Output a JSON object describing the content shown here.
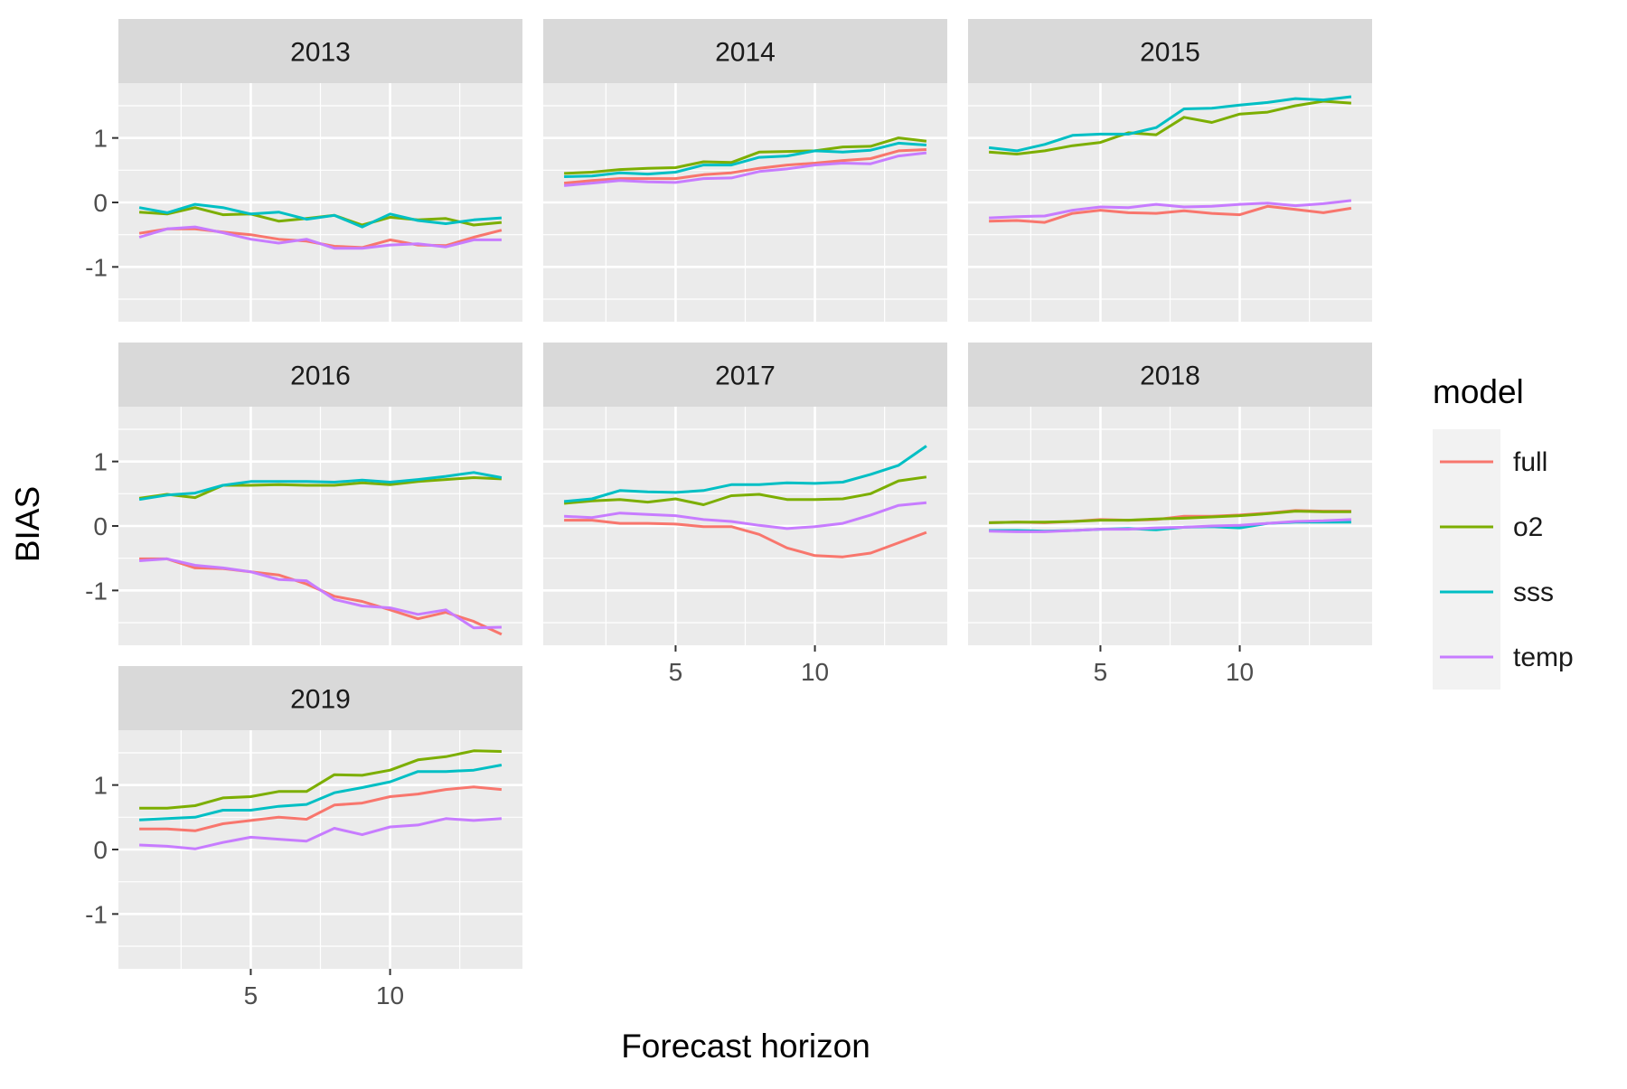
{
  "chart_data": {
    "type": "line",
    "xlabel": "Forecast horizon",
    "ylabel": "BIAS",
    "xlim": [
      0.25,
      14.75
    ],
    "ylim": [
      -1.85,
      1.85
    ],
    "x_ticks": [
      5,
      10
    ],
    "x_tick_labels": [
      "5",
      "10"
    ],
    "y_ticks": [
      -1,
      0,
      1
    ],
    "y_tick_labels": [
      "-1",
      "0",
      "1"
    ],
    "grid": true,
    "facet_columns": 3,
    "legend": {
      "title": "model",
      "position": "right",
      "entries": [
        {
          "name": "full",
          "color": "#F8766D"
        },
        {
          "name": "o2",
          "color": "#7CAE00"
        },
        {
          "name": "sss",
          "color": "#00BFC4"
        },
        {
          "name": "temp",
          "color": "#C77CFF"
        }
      ]
    },
    "x": [
      1,
      2,
      3,
      4,
      5,
      6,
      7,
      8,
      9,
      10,
      11,
      12,
      13,
      14
    ],
    "panels": [
      {
        "title": "2013",
        "series": [
          {
            "name": "full",
            "values": [
              -0.48,
              -0.41,
              -0.41,
              -0.46,
              -0.5,
              -0.57,
              -0.6,
              -0.68,
              -0.7,
              -0.58,
              -0.66,
              -0.67,
              -0.54,
              -0.43
            ]
          },
          {
            "name": "o2",
            "values": [
              -0.15,
              -0.18,
              -0.08,
              -0.19,
              -0.18,
              -0.29,
              -0.25,
              -0.2,
              -0.35,
              -0.23,
              -0.27,
              -0.25,
              -0.35,
              -0.31
            ]
          },
          {
            "name": "sss",
            "values": [
              -0.08,
              -0.16,
              -0.03,
              -0.08,
              -0.18,
              -0.15,
              -0.26,
              -0.2,
              -0.38,
              -0.18,
              -0.28,
              -0.33,
              -0.27,
              -0.24
            ]
          },
          {
            "name": "temp",
            "values": [
              -0.54,
              -0.41,
              -0.38,
              -0.47,
              -0.57,
              -0.63,
              -0.57,
              -0.71,
              -0.71,
              -0.66,
              -0.64,
              -0.69,
              -0.58,
              -0.58
            ]
          }
        ]
      },
      {
        "title": "2014",
        "series": [
          {
            "name": "full",
            "values": [
              0.3,
              0.34,
              0.37,
              0.37,
              0.37,
              0.43,
              0.46,
              0.53,
              0.58,
              0.61,
              0.65,
              0.68,
              0.8,
              0.82
            ]
          },
          {
            "name": "o2",
            "values": [
              0.45,
              0.47,
              0.51,
              0.53,
              0.54,
              0.63,
              0.62,
              0.78,
              0.79,
              0.8,
              0.86,
              0.87,
              1.0,
              0.95
            ]
          },
          {
            "name": "sss",
            "values": [
              0.4,
              0.41,
              0.46,
              0.44,
              0.47,
              0.58,
              0.58,
              0.7,
              0.72,
              0.8,
              0.78,
              0.81,
              0.92,
              0.89
            ]
          },
          {
            "name": "temp",
            "values": [
              0.26,
              0.3,
              0.34,
              0.32,
              0.31,
              0.37,
              0.38,
              0.48,
              0.52,
              0.58,
              0.61,
              0.6,
              0.72,
              0.77
            ]
          }
        ]
      },
      {
        "title": "2015",
        "series": [
          {
            "name": "full",
            "values": [
              -0.29,
              -0.28,
              -0.31,
              -0.17,
              -0.12,
              -0.16,
              -0.17,
              -0.13,
              -0.17,
              -0.19,
              -0.06,
              -0.11,
              -0.16,
              -0.09
            ]
          },
          {
            "name": "o2",
            "values": [
              0.78,
              0.75,
              0.8,
              0.88,
              0.93,
              1.08,
              1.05,
              1.32,
              1.24,
              1.37,
              1.4,
              1.5,
              1.57,
              1.54
            ]
          },
          {
            "name": "sss",
            "values": [
              0.85,
              0.8,
              0.9,
              1.04,
              1.06,
              1.06,
              1.16,
              1.45,
              1.46,
              1.51,
              1.55,
              1.61,
              1.59,
              1.64
            ]
          },
          {
            "name": "temp",
            "values": [
              -0.24,
              -0.22,
              -0.21,
              -0.12,
              -0.07,
              -0.08,
              -0.03,
              -0.07,
              -0.06,
              -0.03,
              -0.01,
              -0.05,
              -0.02,
              0.03
            ]
          }
        ]
      },
      {
        "title": "2016",
        "series": [
          {
            "name": "full",
            "values": [
              -0.51,
              -0.51,
              -0.65,
              -0.66,
              -0.71,
              -0.76,
              -0.9,
              -1.09,
              -1.17,
              -1.3,
              -1.44,
              -1.34,
              -1.48,
              -1.68
            ]
          },
          {
            "name": "o2",
            "values": [
              0.43,
              0.49,
              0.44,
              0.63,
              0.63,
              0.64,
              0.63,
              0.63,
              0.67,
              0.64,
              0.69,
              0.72,
              0.75,
              0.73
            ]
          },
          {
            "name": "sss",
            "values": [
              0.41,
              0.48,
              0.51,
              0.63,
              0.69,
              0.69,
              0.69,
              0.68,
              0.71,
              0.68,
              0.72,
              0.77,
              0.83,
              0.75
            ]
          },
          {
            "name": "temp",
            "values": [
              -0.54,
              -0.51,
              -0.61,
              -0.65,
              -0.71,
              -0.83,
              -0.85,
              -1.14,
              -1.24,
              -1.27,
              -1.37,
              -1.3,
              -1.58,
              -1.57
            ]
          }
        ]
      },
      {
        "title": "2017",
        "series": [
          {
            "name": "full",
            "values": [
              0.09,
              0.09,
              0.04,
              0.04,
              0.03,
              -0.01,
              -0.01,
              -0.13,
              -0.34,
              -0.46,
              -0.48,
              -0.42,
              -0.26,
              -0.1
            ]
          },
          {
            "name": "o2",
            "values": [
              0.35,
              0.39,
              0.41,
              0.37,
              0.42,
              0.33,
              0.47,
              0.49,
              0.41,
              0.41,
              0.42,
              0.5,
              0.7,
              0.76
            ]
          },
          {
            "name": "sss",
            "values": [
              0.38,
              0.42,
              0.55,
              0.53,
              0.52,
              0.55,
              0.64,
              0.64,
              0.67,
              0.66,
              0.68,
              0.8,
              0.94,
              1.24
            ]
          },
          {
            "name": "temp",
            "values": [
              0.15,
              0.13,
              0.2,
              0.18,
              0.16,
              0.1,
              0.07,
              0.01,
              -0.04,
              -0.01,
              0.04,
              0.17,
              0.32,
              0.36
            ]
          }
        ]
      },
      {
        "title": "2018",
        "series": [
          {
            "name": "full",
            "values": [
              0.05,
              0.06,
              0.05,
              0.07,
              0.1,
              0.09,
              0.1,
              0.15,
              0.15,
              0.17,
              0.2,
              0.24,
              0.23,
              0.23
            ]
          },
          {
            "name": "o2",
            "values": [
              0.05,
              0.06,
              0.06,
              0.07,
              0.09,
              0.09,
              0.11,
              0.12,
              0.14,
              0.16,
              0.19,
              0.23,
              0.22,
              0.22
            ]
          },
          {
            "name": "sss",
            "values": [
              -0.07,
              -0.07,
              -0.08,
              -0.07,
              -0.05,
              -0.04,
              -0.06,
              -0.02,
              -0.01,
              -0.03,
              0.04,
              0.06,
              0.06,
              0.06
            ]
          },
          {
            "name": "temp",
            "values": [
              -0.08,
              -0.09,
              -0.09,
              -0.07,
              -0.05,
              -0.05,
              -0.03,
              -0.02,
              0.0,
              0.01,
              0.04,
              0.07,
              0.08,
              0.1
            ]
          }
        ]
      },
      {
        "title": "2019",
        "series": [
          {
            "name": "full",
            "values": [
              0.32,
              0.32,
              0.29,
              0.4,
              0.45,
              0.5,
              0.47,
              0.69,
              0.72,
              0.82,
              0.86,
              0.93,
              0.97,
              0.93
            ]
          },
          {
            "name": "o2",
            "values": [
              0.64,
              0.64,
              0.68,
              0.8,
              0.82,
              0.9,
              0.9,
              1.16,
              1.15,
              1.23,
              1.39,
              1.44,
              1.53,
              1.52
            ]
          },
          {
            "name": "sss",
            "values": [
              0.46,
              0.48,
              0.5,
              0.61,
              0.61,
              0.67,
              0.7,
              0.88,
              0.96,
              1.05,
              1.21,
              1.21,
              1.23,
              1.31
            ]
          },
          {
            "name": "temp",
            "values": [
              0.07,
              0.05,
              0.01,
              0.11,
              0.19,
              0.16,
              0.13,
              0.33,
              0.23,
              0.35,
              0.38,
              0.48,
              0.45,
              0.48
            ]
          }
        ]
      }
    ]
  }
}
